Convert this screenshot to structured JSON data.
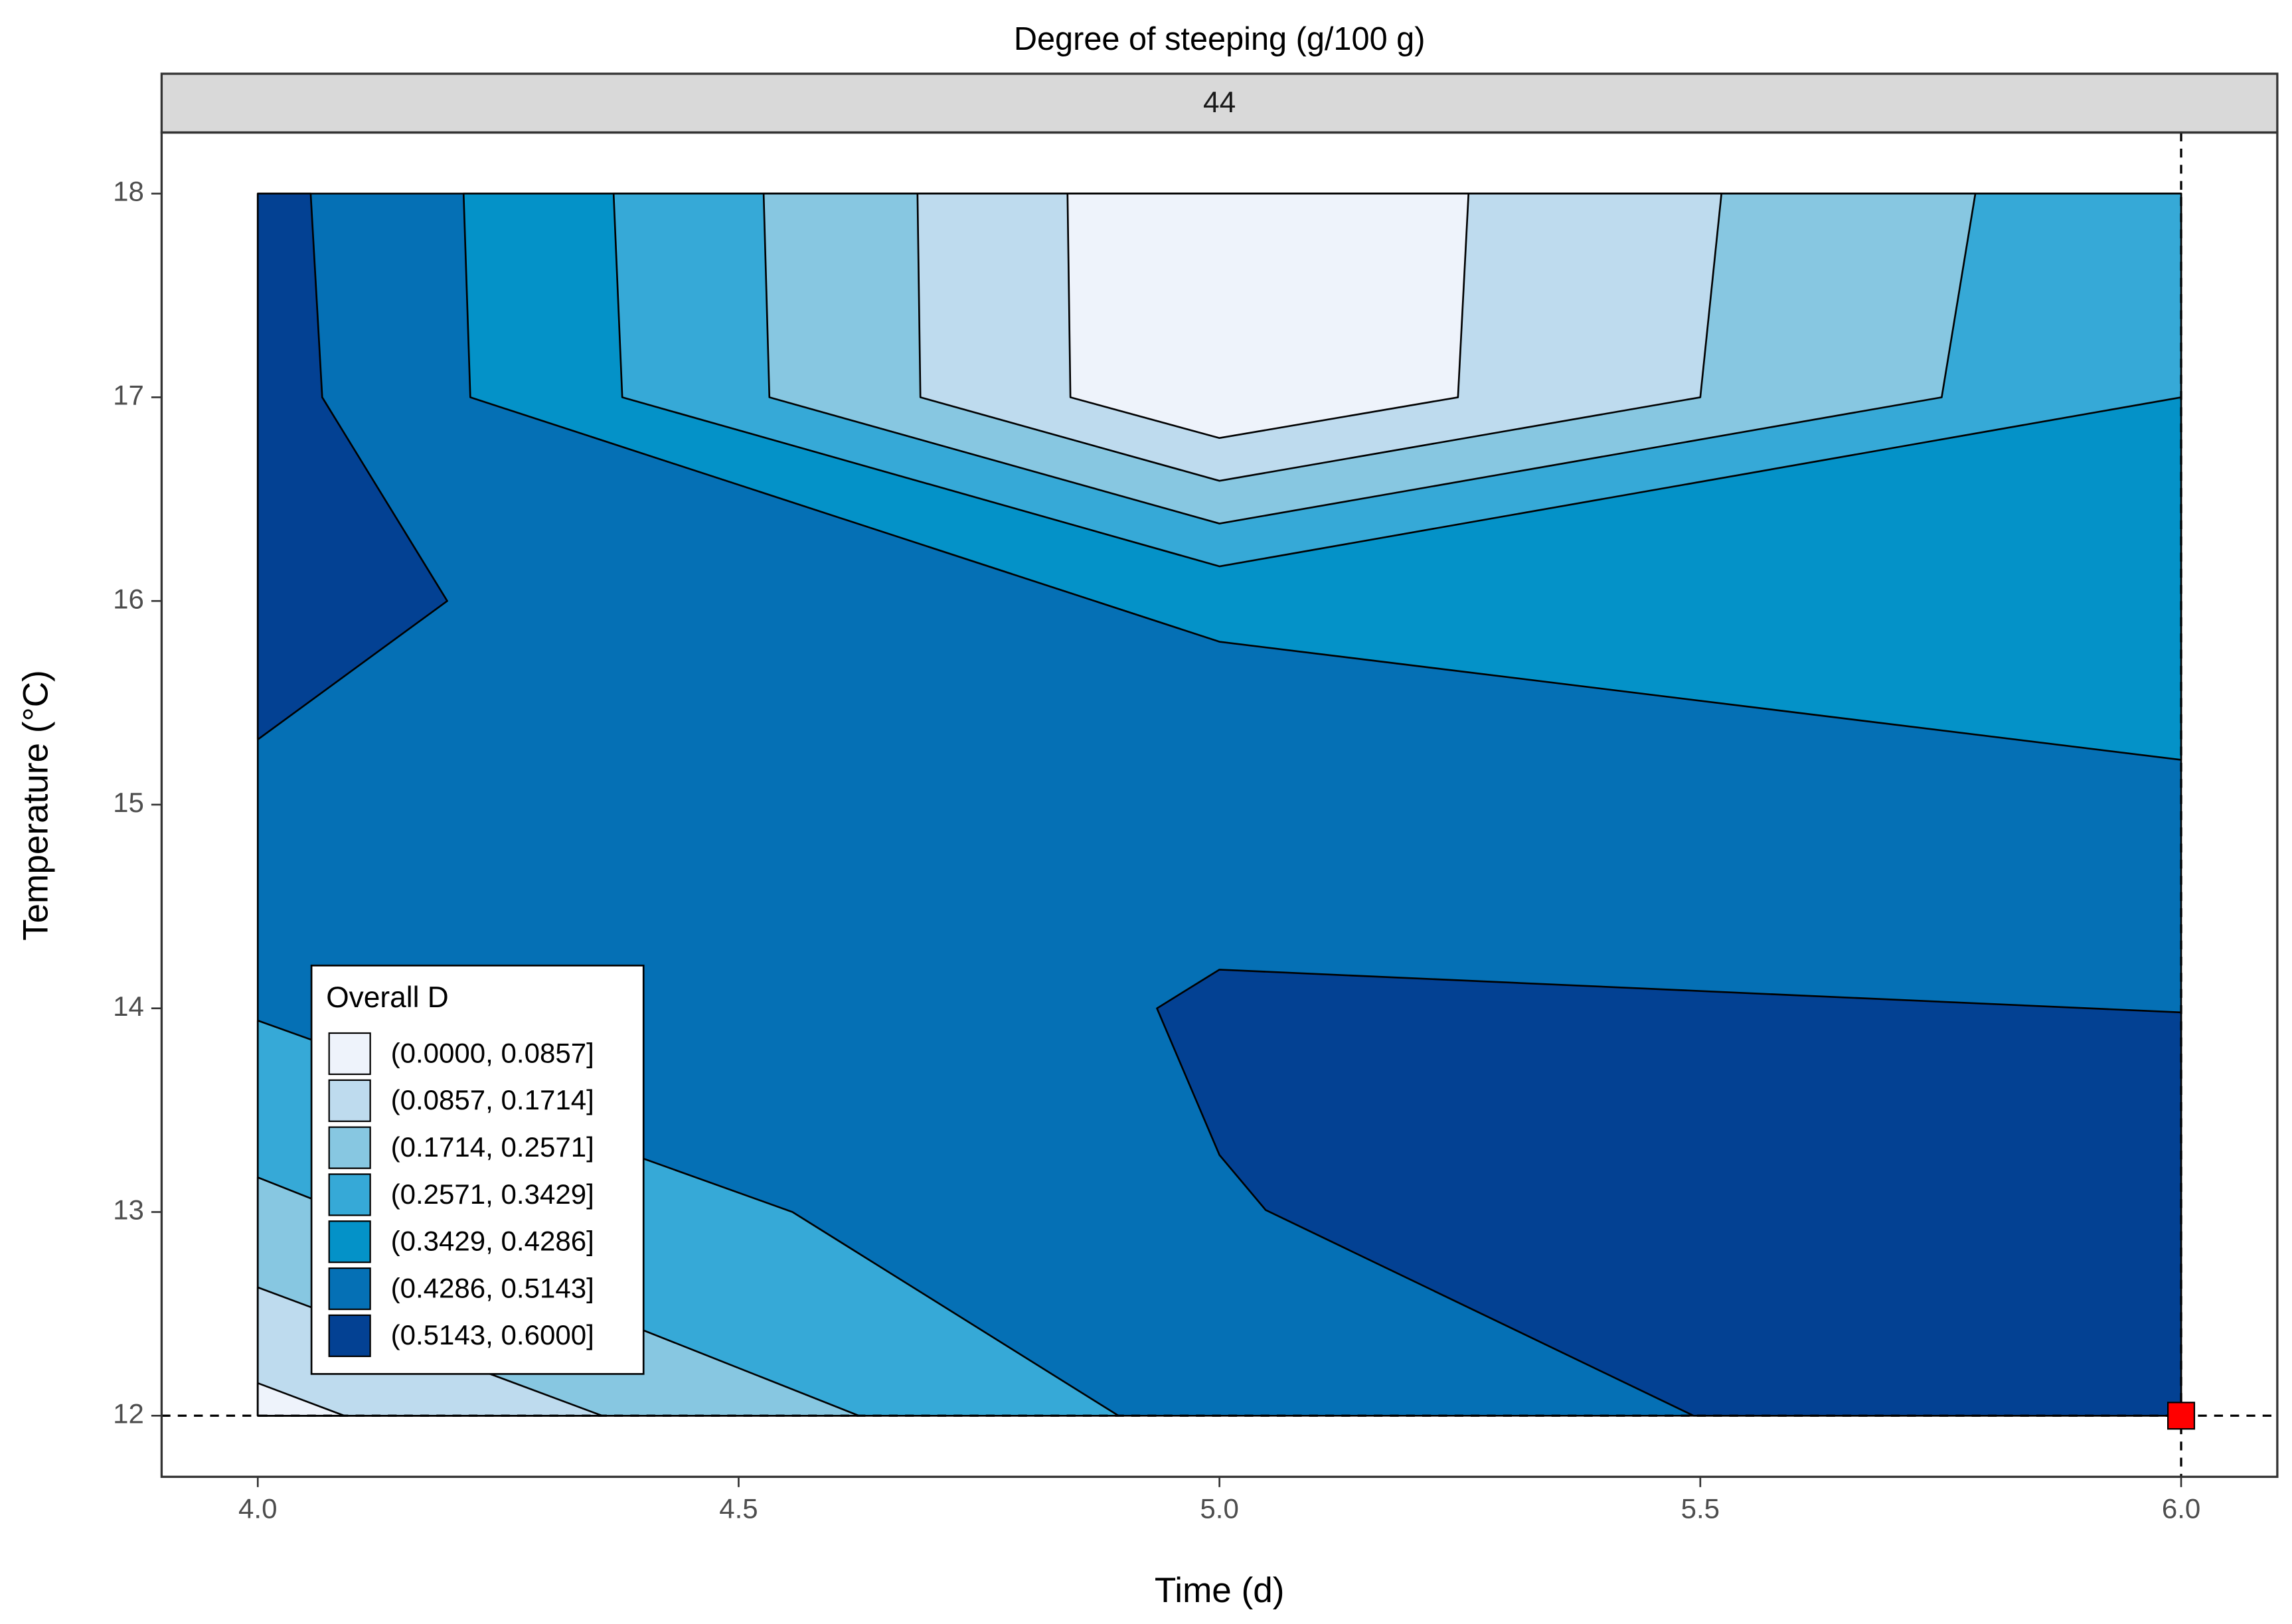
{
  "chart_data": {
    "type": "contour",
    "title": "Degree of steeping (g/100 g)",
    "facet_label": "44",
    "x_label": "Time (d)",
    "y_label": "Temperature (°C)",
    "xlim": [
      3.9,
      6.1
    ],
    "ylim": [
      11.7,
      18.3
    ],
    "xticks": [
      {
        "value": 4,
        "label": "4.0"
      },
      {
        "value": 4.5,
        "label": "4.5"
      },
      {
        "value": 5,
        "label": "5.0"
      },
      {
        "value": 5.5,
        "label": "5.5"
      },
      {
        "value": 6,
        "label": "6.0"
      }
    ],
    "yticks": [
      12,
      13,
      14,
      15,
      16,
      17,
      18
    ],
    "grid": false,
    "legend_title": "Overall D",
    "legend_position": "bottom-left",
    "series": [
      {
        "name": "(0.0000, 0.0857]",
        "color": "#eef3fb",
        "polygons": [
          {
            "x": [
              4.842,
              4.845,
              5.0,
              5.248,
              5.259
            ],
            "y": [
              18,
              17.0,
              16.8,
              17.0,
              18
            ]
          },
          {
            "x": [
              4.0,
              4.09,
              4.0
            ],
            "y": [
              12.16,
              12,
              12
            ]
          }
        ]
      },
      {
        "name": "(0.0857, 0.1714]",
        "color": "#bedbee",
        "polygons": [
          {
            "x": [
              4.686,
              4.689,
              5.0,
              5.5,
              5.522
            ],
            "y": [
              18,
              17.0,
              16.59,
              17.0,
              18
            ]
          },
          {
            "x": [
              4.0,
              4.358,
              4.0
            ],
            "y": [
              12.63,
              12,
              12
            ]
          }
        ]
      },
      {
        "name": "(0.1714, 0.2571]",
        "color": "#87c7e1",
        "polygons": [
          {
            "x": [
              4.526,
              4.532,
              5.0,
              5.751,
              5.786
            ],
            "y": [
              18,
              17.0,
              16.38,
              17.0,
              18
            ]
          },
          {
            "x": [
              4.0,
              4.625,
              4.0
            ],
            "y": [
              13.17,
              12,
              12
            ]
          }
        ]
      },
      {
        "name": "(0.2571, 0.3429]",
        "color": "#36a9d7",
        "polygons": [
          {
            "x": [
              4.37,
              4.379,
              5.0,
              6.0,
              6.0
            ],
            "y": [
              18,
              17.0,
              16.17,
              17.0,
              18
            ]
          },
          {
            "x": [
              4.0,
              4.556,
              4.895,
              4.0
            ],
            "y": [
              13.94,
              13.0,
              12,
              12
            ]
          }
        ]
      },
      {
        "name": "(0.3429, 0.4286]",
        "color": "#0492c8",
        "polygons": [
          {
            "x": [
              4.214,
              4.221,
              5.0,
              6.0,
              6.0
            ],
            "y": [
              18,
              17.0,
              15.8,
              15.22,
              18
            ]
          }
        ]
      },
      {
        "name": "(0.4286, 0.5143]",
        "color": "#0570b5",
        "polygons": [
          {
            "x": [
              4.0,
              6.0,
              6.0,
              4.0
            ],
            "y": [
              12,
              12,
              18,
              18
            ]
          }
        ]
      },
      {
        "name": "(0.5143, 0.6000]",
        "color": "#034193",
        "polygons": [
          {
            "x": [
              4.0,
              4.055,
              4.067,
              4.197,
              4.0
            ],
            "y": [
              18,
              18,
              17.0,
              16.0,
              15.32
            ]
          },
          {
            "x": [
              4.935,
              5.0,
              6.0,
              6.0,
              5.493,
              5.048,
              5.0
            ],
            "y": [
              14.0,
              14.19,
              13.98,
              12,
              12,
              13.01,
              13.28
            ]
          }
        ]
      }
    ],
    "marker": {
      "x": 6,
      "y": 12,
      "color": "#ff0000"
    }
  }
}
